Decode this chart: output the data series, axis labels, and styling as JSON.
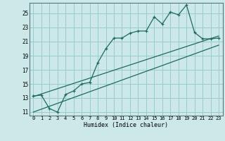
{
  "xlabel": "Humidex (Indice chaleur)",
  "bg_color": "#cce8e8",
  "grid_color": "#99cccc",
  "line_color": "#1e6b5e",
  "xlim": [
    -0.5,
    23.5
  ],
  "ylim": [
    10.5,
    26.5
  ],
  "yticks": [
    11,
    13,
    15,
    17,
    19,
    21,
    23,
    25
  ],
  "xticks": [
    0,
    1,
    2,
    3,
    4,
    5,
    6,
    7,
    8,
    9,
    10,
    11,
    12,
    13,
    14,
    15,
    16,
    17,
    18,
    19,
    20,
    21,
    22,
    23
  ],
  "line1_x": [
    0,
    1,
    2,
    3,
    4,
    5,
    6,
    7,
    8,
    9,
    10,
    11,
    12,
    13,
    14,
    15,
    16,
    17,
    18,
    19,
    20,
    21,
    22,
    23
  ],
  "line1_y": [
    13.3,
    13.4,
    11.5,
    11.0,
    13.5,
    14.0,
    15.0,
    15.2,
    18.0,
    20.0,
    21.5,
    21.5,
    22.2,
    22.5,
    22.5,
    24.5,
    23.5,
    25.2,
    24.8,
    26.2,
    22.3,
    21.4,
    21.4,
    21.5
  ],
  "line2_x": [
    0,
    23
  ],
  "line2_y": [
    11.0,
    20.5
  ],
  "line3_x": [
    0,
    23
  ],
  "line3_y": [
    13.2,
    21.8
  ]
}
